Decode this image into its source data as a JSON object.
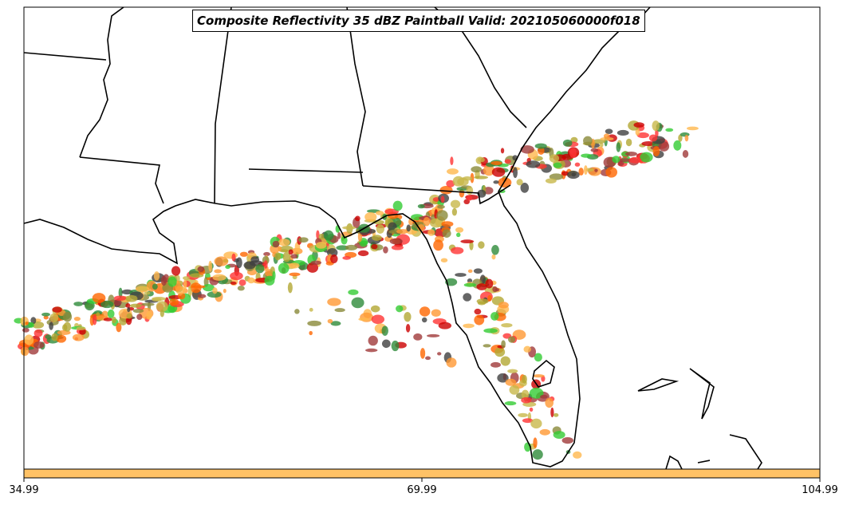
{
  "title": "Composite Reflectivity 35 dBZ Paintball Valid: 202105060000f018",
  "colorbar": {
    "color": "#ffc266",
    "ticks": [
      "34.99",
      "69.99",
      "104.99"
    ]
  },
  "paintball_colors": [
    "#ff3333",
    "#cc0000",
    "#ff6600",
    "#ff9933",
    "#ffb84d",
    "#b3a833",
    "#8a8a3a",
    "#2e8b3a",
    "#33cc33",
    "#404040",
    "#a03a3a",
    "#c8b84a"
  ]
}
